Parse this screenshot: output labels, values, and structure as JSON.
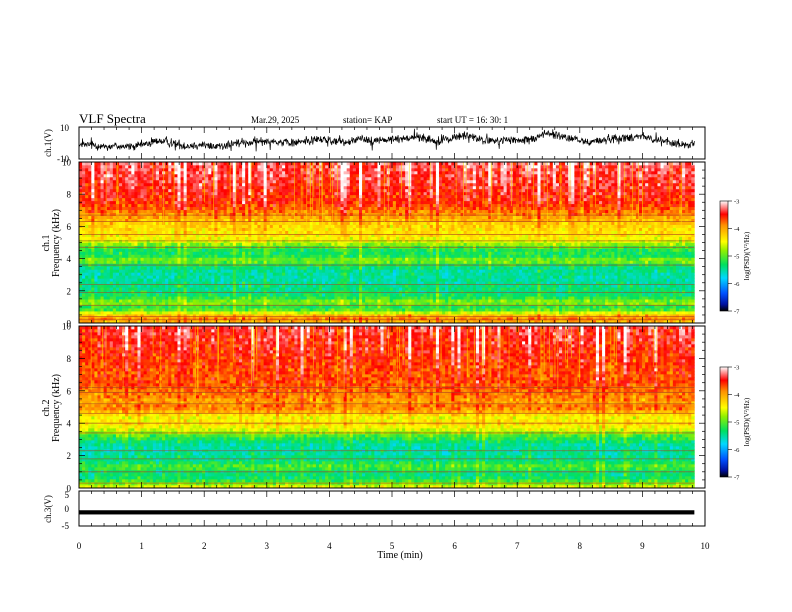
{
  "header": {
    "title": "VLF Spectra",
    "date": "Mar.29, 2025",
    "station": "station= KAP",
    "start": "start  UT  =   16: 30: 1"
  },
  "chart_data": [
    {
      "id": "ch1-waveform",
      "type": "line",
      "ylabel": "ch.1(V)",
      "ylim": [
        -10,
        10
      ],
      "yticks": [
        "10",
        "-10"
      ],
      "xlim": [
        0,
        10
      ],
      "data_end": 9.83,
      "baseline": 0,
      "segment_means": [
        -1.5,
        -1.0,
        -2.2,
        -1.8,
        -2.5,
        -0.5,
        1.5,
        0.0,
        -2.0,
        -1.0,
        -2.0,
        -1.5,
        0.0,
        0.5,
        1.5,
        0.5,
        0.0,
        1.5,
        2.5,
        1.0,
        0.5,
        3.0,
        1.5,
        2.0,
        2.5,
        4.0,
        2.5,
        0.5,
        3.5,
        5.0,
        2.0,
        1.0,
        2.0,
        1.0,
        3.0,
        6.5,
        4.0,
        2.5,
        0.5,
        1.5,
        3.0,
        3.0,
        5.0,
        2.0,
        0.5,
        -0.5,
        -2.0
      ]
    },
    {
      "id": "ch1-spectrogram",
      "type": "heatmap",
      "ylabel_top": "ch.1",
      "ylabel": "Frequency (kHz)",
      "ylim": [
        0,
        10
      ],
      "yticks": [
        "0",
        "2",
        "4",
        "6",
        "8",
        "10"
      ],
      "xlim": [
        0,
        10
      ],
      "data_end": 9.83,
      "profile": [
        [
          0.0,
          -4.3
        ],
        [
          0.2,
          -3.8
        ],
        [
          0.5,
          -4.2
        ],
        [
          0.8,
          -5.0
        ],
        [
          1.0,
          -5.2
        ],
        [
          1.3,
          -4.8
        ],
        [
          1.7,
          -5.3
        ],
        [
          2.2,
          -5.4
        ],
        [
          2.7,
          -5.5
        ],
        [
          3.2,
          -5.5
        ],
        [
          3.6,
          -5.3
        ],
        [
          3.9,
          -4.8
        ],
        [
          4.2,
          -5.3
        ],
        [
          4.6,
          -5.2
        ],
        [
          5.0,
          -4.7
        ],
        [
          5.3,
          -4.4
        ],
        [
          5.8,
          -4.3
        ],
        [
          6.2,
          -4.2
        ],
        [
          6.8,
          -3.9
        ],
        [
          7.5,
          -3.6
        ],
        [
          8.2,
          -3.5
        ],
        [
          9.0,
          -3.4
        ],
        [
          10.0,
          -3.3
        ]
      ],
      "lines_khz": [
        0.2,
        0.4,
        1.1,
        1.9,
        2.4,
        3.6,
        4.7,
        5.1,
        5.5,
        6.3,
        6.7
      ],
      "colorbar": {
        "label": "log(PSD)(V²/Hz)",
        "range": [
          -7,
          -3
        ],
        "ticks": [
          "-3",
          "-4",
          "-5",
          "-6",
          "-7"
        ]
      }
    },
    {
      "id": "ch2-spectrogram",
      "type": "heatmap",
      "ylabel_top": "ch.2",
      "ylabel": "Frequency (kHz)",
      "ylim": [
        0,
        10
      ],
      "yticks": [
        "0",
        "2",
        "4",
        "6",
        "8",
        "10"
      ],
      "xlim": [
        0,
        10
      ],
      "data_end": 9.83,
      "profile": [
        [
          0.0,
          -4.4
        ],
        [
          0.3,
          -4.9
        ],
        [
          0.6,
          -5.3
        ],
        [
          1.0,
          -5.4
        ],
        [
          1.3,
          -5.0
        ],
        [
          1.7,
          -5.4
        ],
        [
          2.2,
          -5.5
        ],
        [
          2.7,
          -5.5
        ],
        [
          3.2,
          -5.1
        ],
        [
          3.6,
          -4.6
        ],
        [
          4.0,
          -4.3
        ],
        [
          4.4,
          -4.5
        ],
        [
          4.7,
          -4.1
        ],
        [
          5.0,
          -3.8
        ],
        [
          5.3,
          -4.0
        ],
        [
          5.6,
          -3.9
        ],
        [
          6.0,
          -3.8
        ],
        [
          6.5,
          -3.7
        ],
        [
          7.2,
          -3.7
        ],
        [
          8.0,
          -3.6
        ],
        [
          9.0,
          -3.5
        ],
        [
          10.0,
          -3.4
        ]
      ],
      "lines_khz": [
        0.3,
        1.0,
        1.8,
        2.3,
        3.4,
        4.0,
        4.6,
        5.2,
        5.9,
        6.2
      ],
      "colorbar": {
        "label": "log(PSD)(V²/Hz)",
        "range": [
          -7,
          -3
        ],
        "ticks": [
          "-3",
          "-4",
          "-5",
          "-6",
          "-7"
        ]
      }
    },
    {
      "id": "ch3-waveform",
      "type": "line",
      "ylabel": "ch.3(V)",
      "ylim": [
        -5,
        5
      ],
      "yticks": [
        "5",
        "0",
        "-5"
      ],
      "xlim": [
        0,
        10
      ],
      "data_end": 9.83,
      "band": [
        -1.7,
        -0.5
      ]
    }
  ],
  "xaxis": {
    "label": "Time (min)",
    "ticks": [
      "0",
      "1",
      "2",
      "3",
      "4",
      "5",
      "6",
      "7",
      "8",
      "9",
      "10"
    ]
  }
}
